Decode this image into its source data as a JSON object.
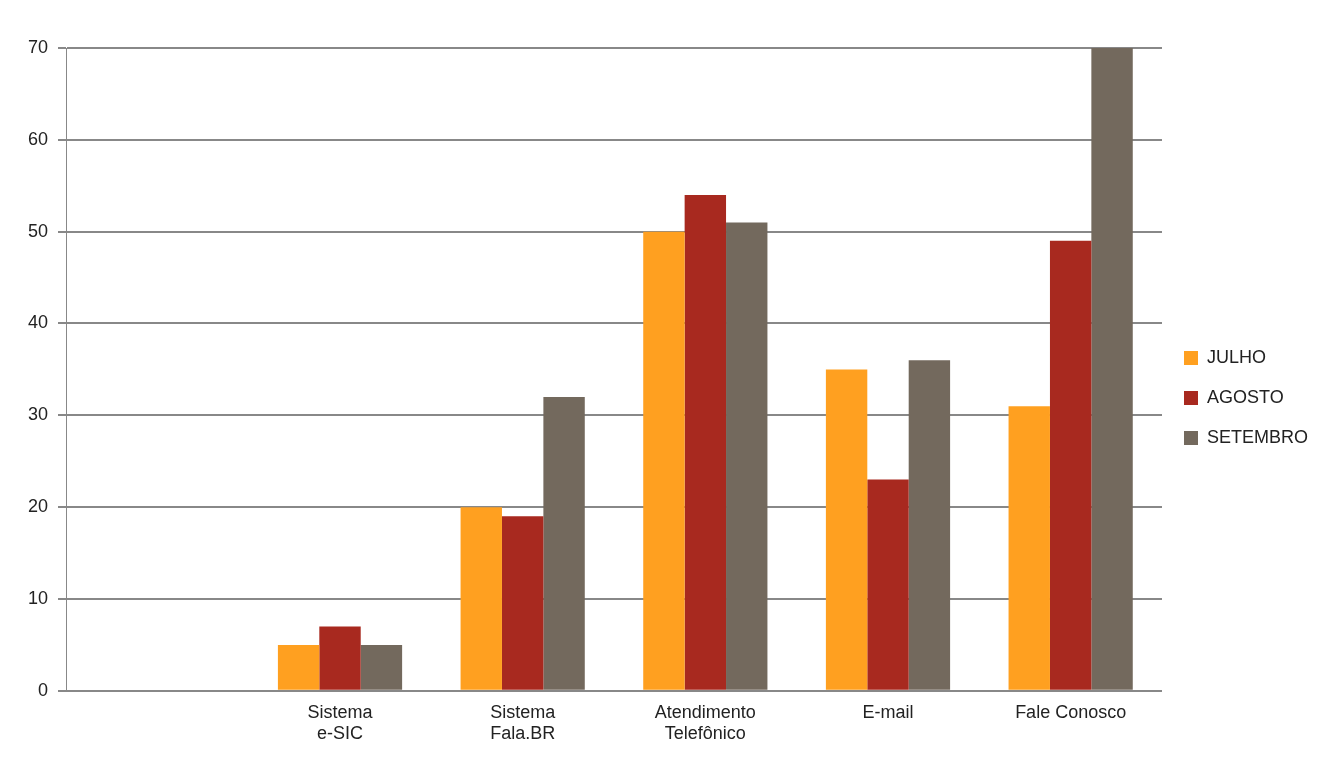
{
  "chart_data": {
    "type": "bar",
    "categories": [
      null,
      "Sistema\ne-SIC",
      "Sistema\nFala.BR",
      "Atendimento\nTelefônico",
      "E-mail",
      "Fale Conosco"
    ],
    "series": [
      {
        "name": "JULHO",
        "color": "#ffa020",
        "values": [
          null,
          5,
          20,
          50,
          35,
          31
        ]
      },
      {
        "name": "AGOSTO",
        "color": "#a8291f",
        "values": [
          null,
          7,
          19,
          54,
          23,
          49
        ]
      },
      {
        "name": "SETEMBRO",
        "color": "#73695d",
        "values": [
          null,
          5,
          32,
          51,
          36,
          70
        ]
      }
    ],
    "ylim": [
      0,
      70
    ],
    "yticks": [
      0,
      10,
      20,
      30,
      40,
      50,
      60,
      70
    ],
    "grid": "y",
    "legend": "right"
  }
}
